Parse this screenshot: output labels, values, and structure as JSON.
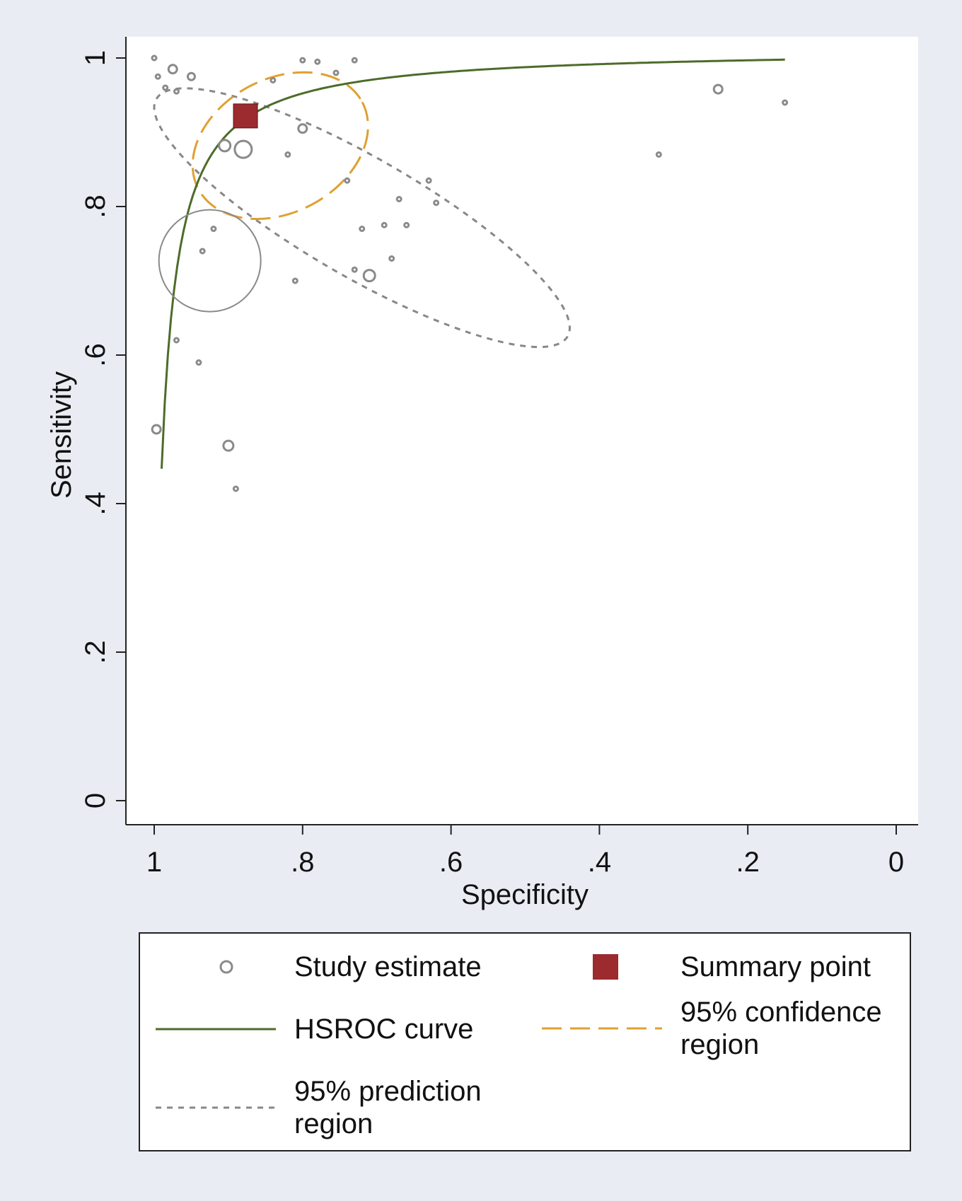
{
  "chart_data": {
    "type": "scatter",
    "xlabel": "Specificity",
    "ylabel": "Sensitivity",
    "xlim": [
      1.03,
      -0.03
    ],
    "ylim": [
      0,
      1.0
    ],
    "x_reversed": true,
    "x_ticks": [
      "1",
      ".8",
      ".6",
      ".4",
      ".2",
      "0"
    ],
    "y_ticks": [
      "0",
      ".2",
      ".4",
      ".6",
      ".8",
      "1"
    ],
    "series": [
      {
        "name": "Study estimate",
        "kind": "points",
        "color": "#8a8a8a",
        "points": [
          {
            "spec": 0.975,
            "sens": 0.985,
            "r": 6
          },
          {
            "spec": 0.95,
            "sens": 0.975,
            "r": 5
          },
          {
            "spec": 0.905,
            "sens": 0.882,
            "r": 8
          },
          {
            "spec": 0.88,
            "sens": 0.877,
            "r": 12
          },
          {
            "spec": 0.8,
            "sens": 0.905,
            "r": 6
          },
          {
            "spec": 0.925,
            "sens": 0.727,
            "r": 72
          },
          {
            "spec": 0.71,
            "sens": 0.707,
            "r": 8
          },
          {
            "spec": 0.24,
            "sens": 0.958,
            "r": 6
          },
          {
            "spec": 0.997,
            "sens": 0.5,
            "r": 6
          },
          {
            "spec": 0.9,
            "sens": 0.478,
            "r": 7
          },
          {
            "spec": 0.74,
            "sens": 0.835,
            "r": 3
          },
          {
            "spec": 0.72,
            "sens": 0.77,
            "r": 3
          },
          {
            "spec": 0.69,
            "sens": 0.775,
            "r": 3
          },
          {
            "spec": 0.67,
            "sens": 0.81,
            "r": 3
          },
          {
            "spec": 0.63,
            "sens": 0.835,
            "r": 3
          },
          {
            "spec": 0.62,
            "sens": 0.805,
            "r": 3
          },
          {
            "spec": 0.73,
            "sens": 0.715,
            "r": 3
          },
          {
            "spec": 0.68,
            "sens": 0.73,
            "r": 3
          },
          {
            "spec": 0.66,
            "sens": 0.775,
            "r": 3
          },
          {
            "spec": 0.89,
            "sens": 0.42,
            "r": 3
          },
          {
            "spec": 0.97,
            "sens": 0.62,
            "r": 3
          },
          {
            "spec": 0.94,
            "sens": 0.59,
            "r": 3
          },
          {
            "spec": 0.935,
            "sens": 0.74,
            "r": 3
          },
          {
            "spec": 0.92,
            "sens": 0.77,
            "r": 3
          },
          {
            "spec": 0.32,
            "sens": 0.87,
            "r": 3
          },
          {
            "spec": 0.15,
            "sens": 0.94,
            "r": 3
          },
          {
            "spec": 0.78,
            "sens": 0.995,
            "r": 3
          },
          {
            "spec": 0.8,
            "sens": 0.997,
            "r": 3
          },
          {
            "spec": 0.73,
            "sens": 0.997,
            "r": 3
          },
          {
            "spec": 0.755,
            "sens": 0.98,
            "r": 3
          },
          {
            "spec": 0.995,
            "sens": 0.975,
            "r": 3
          },
          {
            "spec": 1.0,
            "sens": 1.0,
            "r": 3
          },
          {
            "spec": 0.985,
            "sens": 0.96,
            "r": 3
          },
          {
            "spec": 0.97,
            "sens": 0.955,
            "r": 3
          },
          {
            "spec": 0.84,
            "sens": 0.97,
            "r": 3
          },
          {
            "spec": 0.82,
            "sens": 0.87,
            "r": 3
          },
          {
            "spec": 0.81,
            "sens": 0.7,
            "r": 3
          }
        ]
      },
      {
        "name": "Summary point",
        "kind": "square",
        "color": "#9b2b2f",
        "spec": 0.877,
        "sens": 0.922
      },
      {
        "name": "HSROC curve",
        "kind": "curve",
        "color": "#4e6b2a",
        "spec_range": [
          0.99,
          0.15
        ],
        "dor": 80
      },
      {
        "name": "95% confidence\nregion",
        "kind": "ellipse",
        "color": "#e0a030",
        "dash": "28 12",
        "center": {
          "spec": 0.83,
          "sens": 0.882
        },
        "semi_axes": [
          0.125,
          0.09
        ],
        "angle_deg": -28
      },
      {
        "name": "95% prediction\nregion",
        "kind": "ellipse",
        "color": "#888888",
        "dash": "8 8",
        "center": {
          "spec": 0.72,
          "sens": 0.785
        },
        "semi_axes": [
          0.32,
          0.08
        ],
        "angle_deg": 30
      }
    ],
    "legend": {
      "position": "bottom",
      "columns": 2,
      "entries": [
        {
          "label": "Study estimate",
          "key": "circle"
        },
        {
          "label": "Summary point",
          "key": "square"
        },
        {
          "label": "HSROC curve",
          "key": "solid-line"
        },
        {
          "label": "95% confidence\nregion",
          "key": "long-dash"
        },
        {
          "label": "95% prediction\nregion",
          "key": "short-dash"
        }
      ]
    },
    "grid": false
  }
}
